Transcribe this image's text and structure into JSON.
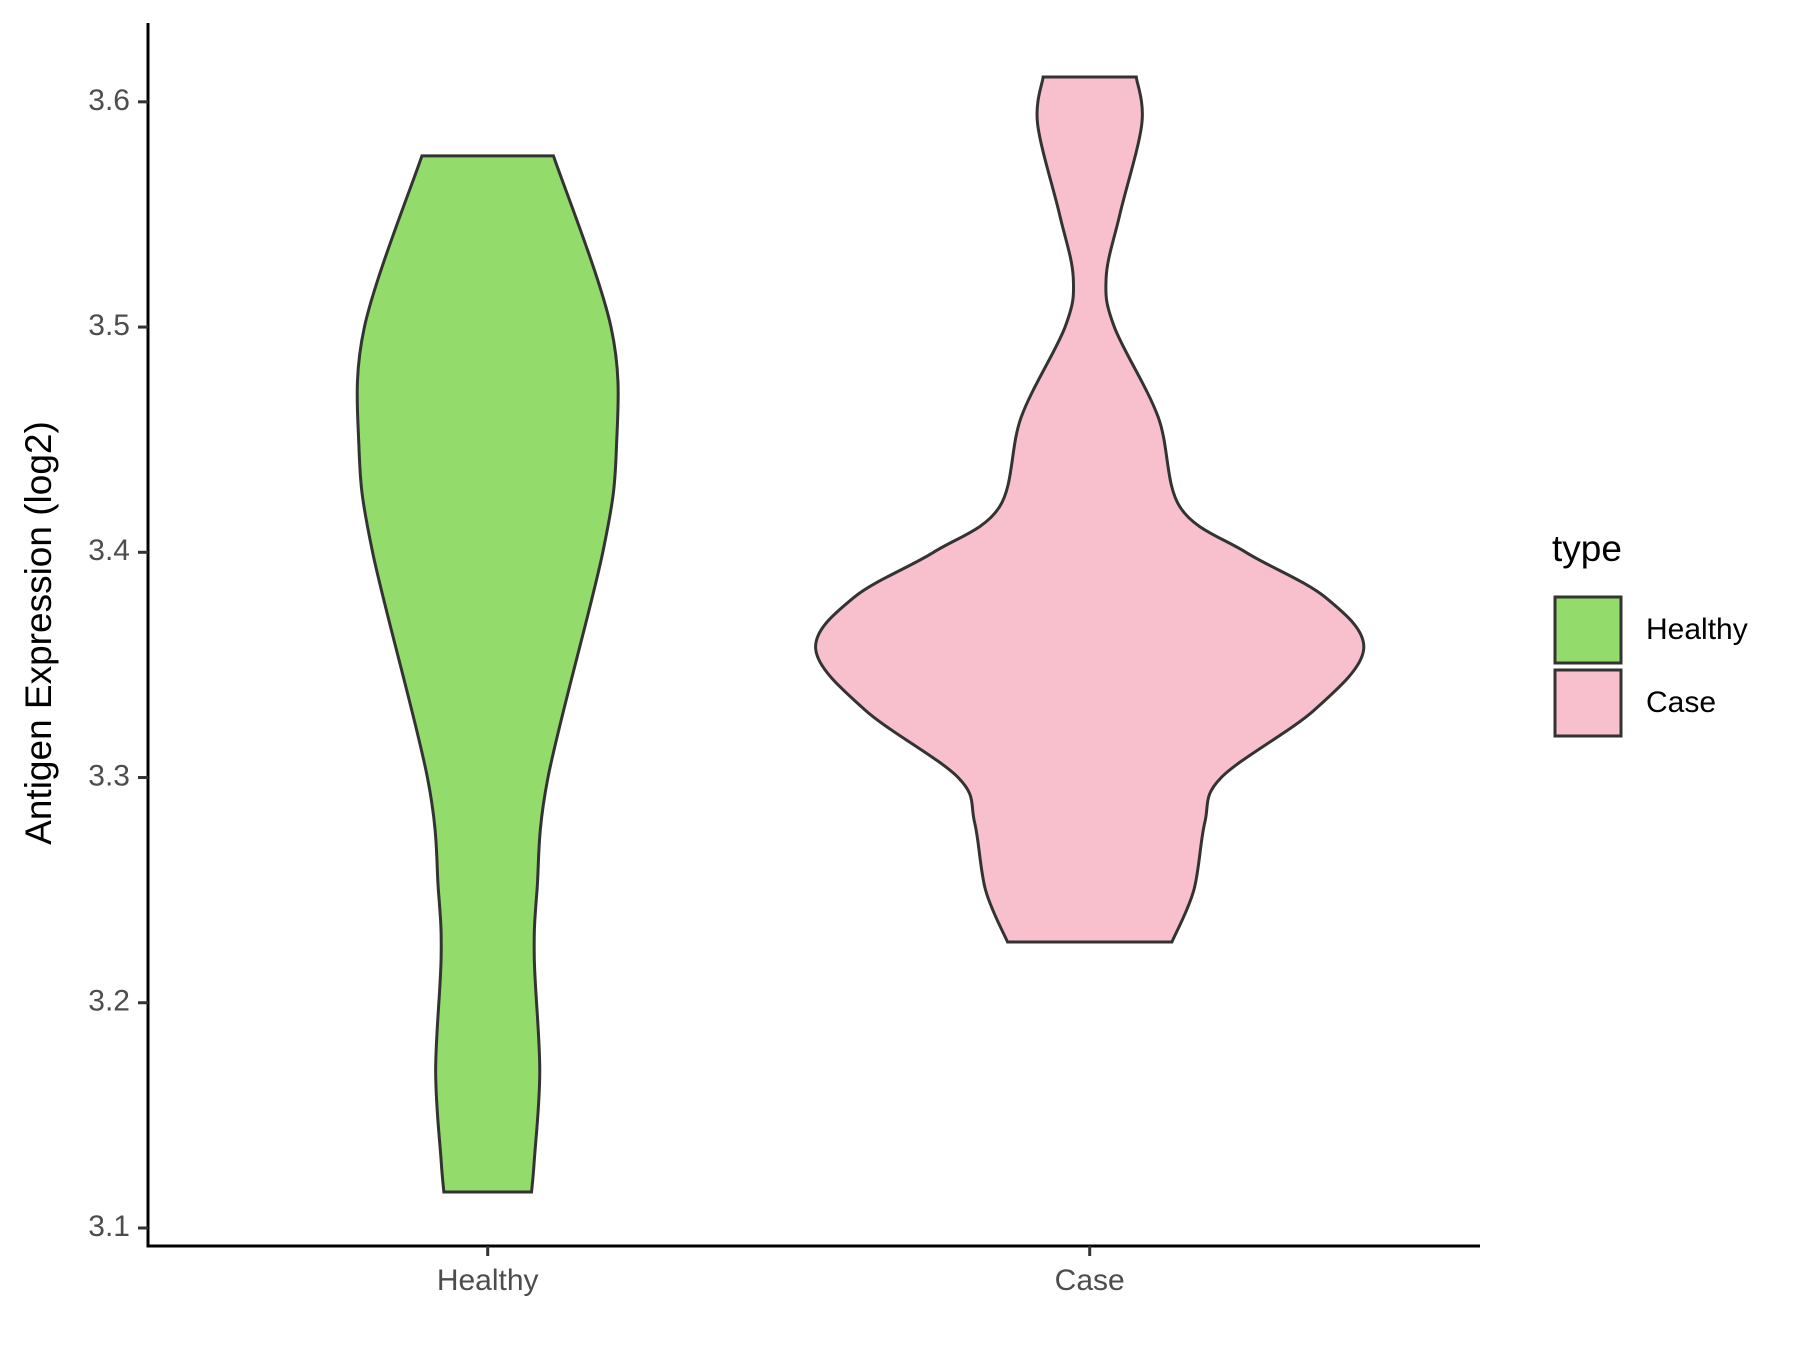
{
  "chart_data": {
    "type": "violin",
    "y_label": "Antigen Expression (log2)",
    "categories": [
      "Healthy",
      "Case"
    ],
    "legend_title": "type",
    "series": [
      {
        "name": "Healthy",
        "color": "#93dc6b",
        "y": [
          3.576,
          3.5,
          3.447,
          3.4,
          3.3,
          3.25,
          3.22,
          3.17,
          3.13,
          3.116
        ],
        "width": [
          0.24,
          0.45,
          0.47,
          0.42,
          0.22,
          0.18,
          0.17,
          0.19,
          0.17,
          0.16
        ]
      },
      {
        "name": "Case",
        "color": "#f7c0cc",
        "y": [
          3.611,
          3.59,
          3.55,
          3.522,
          3.5,
          3.46,
          3.42,
          3.4,
          3.38,
          3.357,
          3.33,
          3.3,
          3.28,
          3.25,
          3.227
        ],
        "width": [
          0.17,
          0.19,
          0.11,
          0.06,
          0.09,
          0.25,
          0.33,
          0.57,
          0.86,
          1,
          0.82,
          0.48,
          0.42,
          0.38,
          0.3
        ]
      }
    ],
    "ylim": [
      3.092,
      3.635
    ],
    "yticks": [
      3.1,
      3.2,
      3.3,
      3.4,
      3.5,
      3.6
    ]
  }
}
